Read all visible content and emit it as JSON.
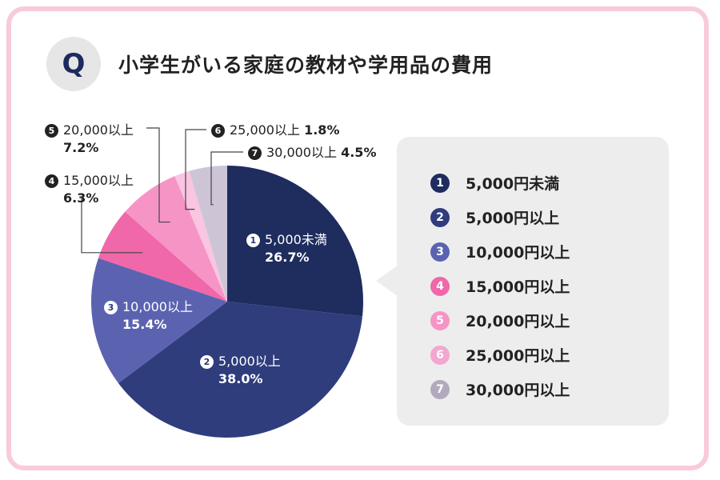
{
  "header": {
    "badge": "Q",
    "title": "小学生がいる家庭の教材や学用品の費用"
  },
  "chart_data": {
    "type": "pie",
    "title": "小学生がいる家庭の教材や学用品の費用",
    "slices": [
      {
        "num": "1",
        "name": "5,000円未満",
        "label": "5,000未満",
        "value": 26.7,
        "pct": "26.7%",
        "color": "#1e2c5e"
      },
      {
        "num": "2",
        "name": "5,000円以上",
        "label": "5,000以上",
        "value": 38.0,
        "pct": "38.0%",
        "color": "#2f3d7c"
      },
      {
        "num": "3",
        "name": "10,000円以上",
        "label": "10,000以上",
        "value": 15.4,
        "pct": "15.4%",
        "color": "#5b63b1"
      },
      {
        "num": "4",
        "name": "15,000円以上",
        "label": "15,000以上",
        "value": 6.3,
        "pct": "6.3%",
        "color": "#f067aa"
      },
      {
        "num": "5",
        "name": "20,000円以上",
        "label": "20,000以上",
        "value": 7.2,
        "pct": "7.2%",
        "color": "#f794c6"
      },
      {
        "num": "6",
        "name": "25,000円以上",
        "label": "25,000以上",
        "value": 1.8,
        "pct": "1.8%",
        "color": "#f9c5e1"
      },
      {
        "num": "7",
        "name": "30,000円以上",
        "label": "30,000以上",
        "value": 4.5,
        "pct": "4.5%",
        "color": "#cdc5d6"
      }
    ],
    "legend_position": "right"
  },
  "legend": {
    "items": [
      {
        "num": "1",
        "label": "5,000円未満",
        "color": "#1e2c5e"
      },
      {
        "num": "2",
        "label": "5,000円以上",
        "color": "#2f3d7c"
      },
      {
        "num": "3",
        "label": "10,000円以上",
        "color": "#5b63b1"
      },
      {
        "num": "4",
        "label": "15,000円以上",
        "color": "#f067aa"
      },
      {
        "num": "5",
        "label": "20,000円以上",
        "color": "#f794c6"
      },
      {
        "num": "6",
        "label": "25,000円以上",
        "color": "#f2a7d0"
      },
      {
        "num": "7",
        "label": "30,000円以上",
        "color": "#b3a9bd"
      }
    ]
  }
}
